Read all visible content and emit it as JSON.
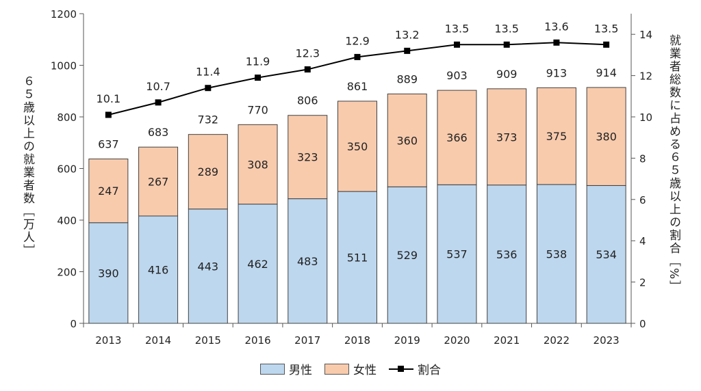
{
  "chart_data": {
    "type": "bar",
    "stacked": true,
    "categories": [
      "2013",
      "2014",
      "2015",
      "2016",
      "2017",
      "2018",
      "2019",
      "2020",
      "2021",
      "2022",
      "2023"
    ],
    "series": [
      {
        "name": "男性",
        "values": [
          390,
          416,
          443,
          462,
          483,
          511,
          529,
          537,
          536,
          538,
          534
        ],
        "color": "#bdd7ee"
      },
      {
        "name": "女性",
        "values": [
          247,
          267,
          289,
          308,
          323,
          350,
          360,
          366,
          373,
          375,
          380
        ],
        "color": "#f8cbad"
      }
    ],
    "totals": [
      637,
      683,
      732,
      770,
      806,
      861,
      889,
      903,
      909,
      913,
      914
    ],
    "line_series": {
      "name": "割合",
      "values": [
        10.1,
        10.7,
        11.4,
        11.9,
        12.3,
        12.9,
        13.2,
        13.5,
        13.5,
        13.6,
        13.5
      ],
      "color": "#000000",
      "axis": "right"
    },
    "ylabel": "６５歳以上の就業者数［万人］",
    "ylabel_right": "就業者総数に占める６５歳以上の割合［%］",
    "ylim": [
      0,
      1200
    ],
    "yticks": [
      0,
      200,
      400,
      600,
      800,
      1000,
      1200
    ],
    "ylim_right": [
      0,
      15
    ],
    "yticks_right": [
      0,
      2,
      4,
      6,
      8,
      10,
      12,
      14
    ],
    "legend_position": "bottom",
    "grid": false
  }
}
